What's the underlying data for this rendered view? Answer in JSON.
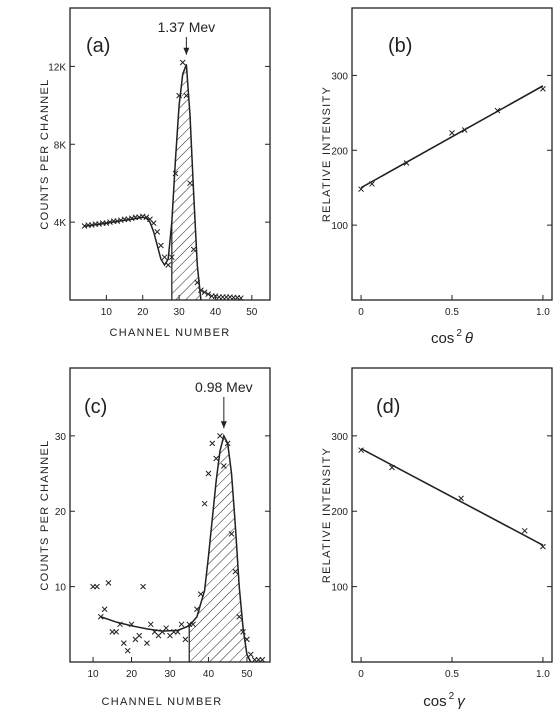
{
  "chart_data": [
    {
      "id": "a",
      "type": "scatter",
      "panel_label": "(a)",
      "annotation": "1.37 Mev",
      "annotation_x": 32,
      "xlabel": "CHANNEL NUMBER",
      "ylabel": "COUNTS PER CHANNEL",
      "xlim": [
        0,
        55
      ],
      "ylim": [
        0,
        15000
      ],
      "xticks": [
        10,
        20,
        30,
        40,
        50
      ],
      "xtick_labels": [
        "10",
        "20",
        "30",
        "40",
        "50"
      ],
      "yticks": [
        4000,
        8000,
        12000
      ],
      "ytick_labels": [
        "4K",
        "8K",
        "12K"
      ],
      "x": [
        4,
        5,
        6,
        7,
        8,
        9,
        10,
        11,
        12,
        13,
        14,
        15,
        16,
        17,
        18,
        19,
        20,
        21,
        22,
        23,
        24,
        25,
        26,
        27,
        28,
        29,
        30,
        31,
        32,
        33,
        34,
        35,
        36,
        37,
        38,
        39,
        40,
        41,
        42,
        43,
        44,
        45,
        46,
        47
      ],
      "y": [
        3800,
        3850,
        3850,
        3900,
        3900,
        3950,
        3950,
        4000,
        4050,
        4050,
        4100,
        4150,
        4150,
        4200,
        4250,
        4250,
        4300,
        4250,
        4150,
        3950,
        3500,
        2800,
        2200,
        1800,
        2200,
        6500,
        10500,
        12200,
        10500,
        6000,
        2600,
        900,
        500,
        400,
        300,
        200,
        200,
        150,
        150,
        150,
        150,
        120,
        120,
        100
      ],
      "fit_x": [
        4,
        10,
        17,
        20,
        21,
        22,
        23,
        24,
        25,
        26,
        27,
        28,
        29,
        30,
        31,
        32,
        33,
        34,
        35,
        36
      ],
      "fit_y": [
        3780,
        3950,
        4150,
        4250,
        4200,
        4000,
        3500,
        2800,
        2100,
        1800,
        2100,
        4000,
        7200,
        10000,
        11600,
        12100,
        9500,
        5500,
        1800,
        0
      ],
      "shaded_region": [
        28,
        36
      ]
    },
    {
      "id": "b",
      "type": "scatter",
      "panel_label": "(b)",
      "xlabel": "cos²θ",
      "xlabel_base": "cos",
      "xlabel_sup": "2",
      "xlabel_var": "θ",
      "ylabel": "RELATIVE INTENSITY",
      "xlim": [
        -0.05,
        1.05
      ],
      "ylim": [
        0,
        390
      ],
      "xticks": [
        0,
        0.5,
        1.0
      ],
      "xtick_labels": [
        "0",
        "0.5",
        "1.0"
      ],
      "yticks": [
        100,
        200,
        300
      ],
      "ytick_labels": [
        "100",
        "200",
        "300"
      ],
      "x": [
        0,
        0.06,
        0.25,
        0.5,
        0.57,
        0.75,
        1.0
      ],
      "y": [
        148,
        155,
        183,
        223,
        227,
        253,
        282
      ],
      "fit": [
        [
          0,
          150
        ],
        [
          1.0,
          286
        ]
      ]
    },
    {
      "id": "c",
      "type": "scatter",
      "panel_label": "(c)",
      "annotation": "0.98 Mev",
      "annotation_x": 44,
      "xlabel": "CHANNEL NUMBER",
      "ylabel": "COUNTS PER CHANNEL",
      "xlim": [
        4,
        56
      ],
      "ylim": [
        0,
        39
      ],
      "xticks": [
        10,
        20,
        30,
        40,
        50
      ],
      "xtick_labels": [
        "10",
        "20",
        "30",
        "40",
        "50"
      ],
      "yticks": [
        10,
        20,
        30
      ],
      "ytick_labels": [
        "10",
        "20",
        "30"
      ],
      "x": [
        10,
        11,
        12,
        13,
        14,
        15,
        16,
        17,
        18,
        19,
        20,
        21,
        22,
        23,
        24,
        25,
        26,
        27,
        28,
        29,
        30,
        31,
        32,
        33,
        34,
        35,
        36,
        37,
        38,
        39,
        40,
        41,
        42,
        43,
        44,
        45,
        46,
        47,
        48,
        49,
        50,
        51,
        52,
        53,
        54
      ],
      "y": [
        10,
        10,
        6,
        7,
        10.5,
        4,
        4,
        5,
        2.5,
        1.5,
        5,
        3,
        3.5,
        10,
        2.5,
        5,
        4,
        3.5,
        4,
        4.5,
        3.5,
        4,
        4,
        5,
        3,
        5,
        5,
        7,
        9,
        21,
        25,
        29,
        27,
        30,
        26,
        29,
        17,
        12,
        6,
        4,
        3,
        1,
        0.3,
        0.3,
        0.3
      ],
      "fit_x": [
        12,
        16,
        20,
        24,
        28,
        32,
        35,
        37,
        39,
        40,
        41,
        42,
        43,
        44,
        45,
        46,
        47,
        48,
        49,
        50,
        51
      ],
      "fit_y": [
        6,
        5.3,
        4.8,
        4.4,
        4.1,
        4.2,
        4.8,
        6,
        9.5,
        14,
        19,
        24,
        28,
        30,
        29,
        25,
        18,
        10,
        4.5,
        1,
        0
      ],
      "shaded_region": [
        35,
        51
      ]
    },
    {
      "id": "d",
      "type": "scatter",
      "panel_label": "(d)",
      "xlabel": "cos²γ",
      "xlabel_base": "cos",
      "xlabel_sup": "2",
      "xlabel_var": "γ",
      "ylabel": "RELATIVE INTENSITY",
      "xlim": [
        -0.05,
        1.05
      ],
      "ylim": [
        0,
        390
      ],
      "xticks": [
        0,
        0.5,
        1.0
      ],
      "xtick_labels": [
        "0",
        "0.5",
        "1.0"
      ],
      "yticks": [
        100,
        200,
        300
      ],
      "ytick_labels": [
        "100",
        "200",
        "300"
      ],
      "x": [
        0,
        0.17,
        0.55,
        0.9,
        1.0
      ],
      "y": [
        281,
        258,
        217,
        174,
        153
      ],
      "fit": [
        [
          0,
          283
        ],
        [
          1.0,
          155
        ]
      ]
    }
  ]
}
